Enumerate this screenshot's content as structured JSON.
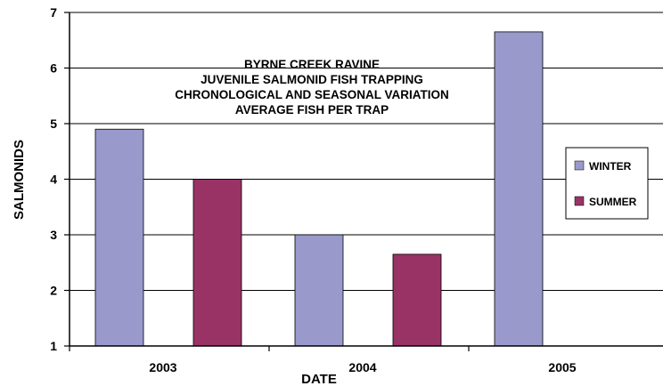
{
  "chart_data": {
    "type": "bar",
    "title_lines": [
      "BYRNE CREEK RAVINE",
      "JUVENILE SALMONID FISH TRAPPING",
      "CHRONOLOGICAL AND SEASONAL VARIATION",
      "AVERAGE FISH PER TRAP"
    ],
    "xlabel": "DATE",
    "ylabel": "SALMONIDS",
    "categories": [
      "2003",
      "2004",
      "2005"
    ],
    "series": [
      {
        "name": "WINTER",
        "color": "#9999cc",
        "values": [
          4.9,
          3.0,
          6.65
        ]
      },
      {
        "name": "SUMMER",
        "color": "#993366",
        "values": [
          4.0,
          2.65,
          null
        ]
      }
    ],
    "ylim": [
      1,
      7
    ],
    "yticks": [
      1,
      2,
      3,
      4,
      5,
      6,
      7
    ],
    "grid": true,
    "legend_position": "right"
  }
}
